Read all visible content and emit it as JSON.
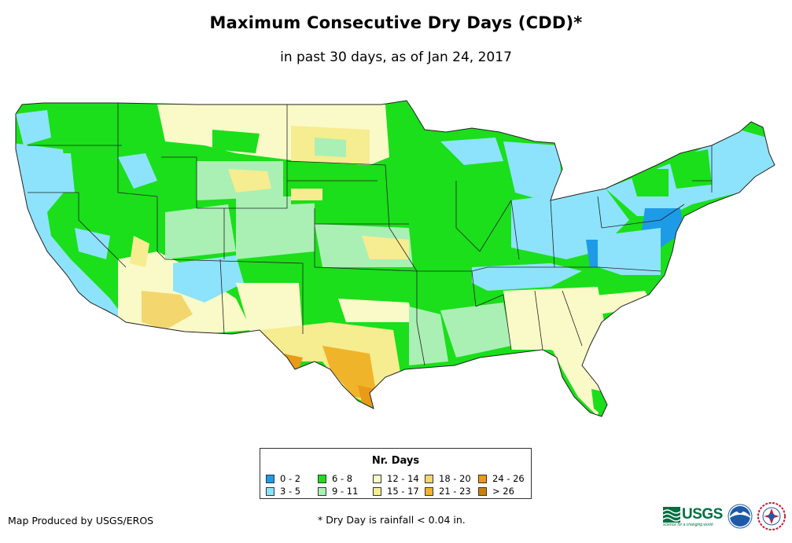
{
  "header": {
    "title": "Maximum Consecutive Dry Days (CDD)*",
    "subtitle": "in past 30 days, as of Jan 24, 2017"
  },
  "legend": {
    "title": "Nr. Days",
    "items": [
      {
        "label": "0 - 2",
        "color": "#1e9be6"
      },
      {
        "label": "3 - 5",
        "color": "#8de3fb"
      },
      {
        "label": "6 - 8",
        "color": "#1adf1a"
      },
      {
        "label": "9 - 11",
        "color": "#aaf0b4"
      },
      {
        "label": "12 - 14",
        "color": "#fafac8"
      },
      {
        "label": "15 - 17",
        "color": "#f6ec90"
      },
      {
        "label": "18 - 20",
        "color": "#f3d66e"
      },
      {
        "label": "21 - 23",
        "color": "#f0b42a"
      },
      {
        "label": "24 - 26",
        "color": "#e99a17"
      },
      {
        "label": "> 26",
        "color": "#c8800f"
      }
    ]
  },
  "footer": {
    "credit": "Map Produced by USGS/EROS",
    "footnote": "* Dry Day is rainfall < 0.04 in.",
    "usgs_logo": "USGS",
    "usgs_tagline": "science for a changing world"
  },
  "colors": {
    "state_border": "#222222",
    "usgs_green": "#006f41"
  }
}
